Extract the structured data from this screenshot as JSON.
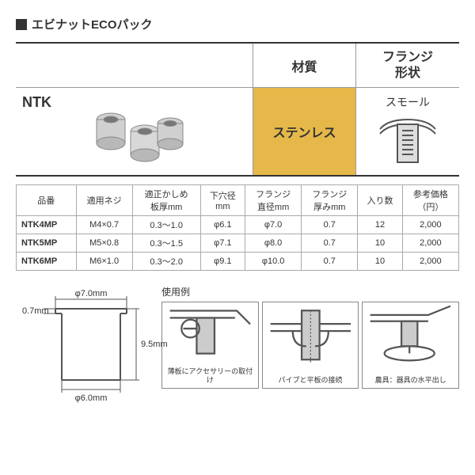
{
  "title": "エビナットECOパック",
  "top_table": {
    "material_header": "材質",
    "flange_header": "フランジ\n形状",
    "series": "NTK",
    "material": "ステンレス",
    "flange_shape": "スモール"
  },
  "spec_table": {
    "columns": [
      "品番",
      "適用ネジ",
      "適正かしめ\n板厚mm",
      "下穴径\nmm",
      "フランジ\n直径mm",
      "フランジ\n厚みmm",
      "入り数",
      "参考価格\n（円）"
    ],
    "rows": [
      [
        "NTK4MP",
        "M4×0.7",
        "0.3〜1.0",
        "φ6.1",
        "φ7.0",
        "0.7",
        "12",
        "2,000"
      ],
      [
        "NTK5MP",
        "M5×0.8",
        "0.3〜1.5",
        "φ7.1",
        "φ8.0",
        "0.7",
        "10",
        "2,000"
      ],
      [
        "NTK6MP",
        "M6×1.0",
        "0.3〜2.0",
        "φ9.1",
        "φ10.0",
        "0.7",
        "10",
        "2,000"
      ]
    ]
  },
  "dimensions": {
    "flange_dia": "φ7.0mm",
    "flange_thick": "0.7mm",
    "height": "9.5mm",
    "body_dia": "φ6.0mm"
  },
  "usage": {
    "title": "使用例",
    "captions": [
      "薄板にアクセサリーの取付け",
      "パイプと平板の接続",
      "農具：器具の水平出し"
    ]
  },
  "colors": {
    "text": "#333333",
    "border": "#999999",
    "material_bg": "#e6b84a",
    "diagram_stroke": "#555555"
  }
}
